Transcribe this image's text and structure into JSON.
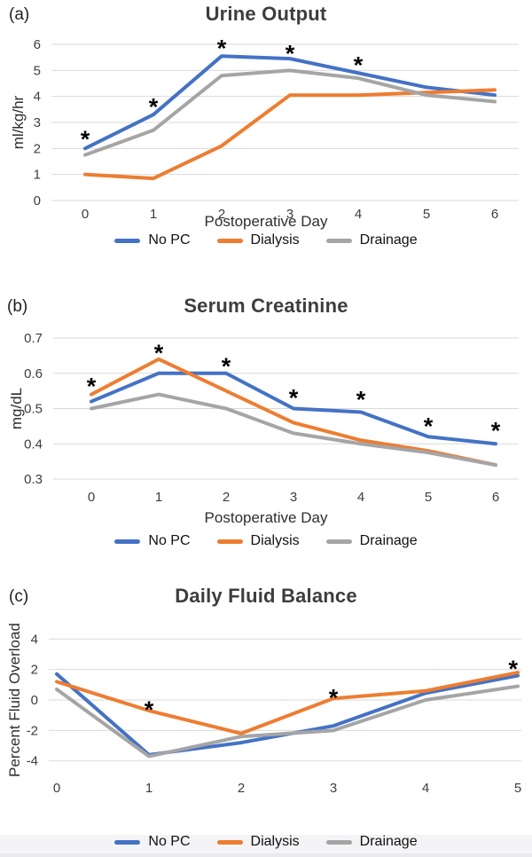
{
  "page": {
    "background": "#ffffff",
    "footer_strip_color": "#f4f4f6",
    "footer_edge_color": "#eaeaee"
  },
  "chart_data": [
    {
      "tag": "(a)",
      "type": "line",
      "title": "Urine Output",
      "ylabel": "ml/kg/hr",
      "xlabel": "Postoperative Day",
      "x": [
        0,
        1,
        2,
        3,
        4,
        5,
        6
      ],
      "ylim": [
        0,
        6
      ],
      "yticks": [
        0,
        1,
        2,
        3,
        4,
        5,
        6
      ],
      "grid": true,
      "legend_position": "bottom",
      "series": [
        {
          "name": "No PC",
          "color": "#4472C4",
          "values": [
            2.0,
            3.3,
            5.55,
            5.45,
            4.9,
            4.35,
            4.05
          ]
        },
        {
          "name": "Dialysis",
          "color": "#ED7D31",
          "values": [
            1.0,
            0.85,
            2.1,
            4.05,
            4.05,
            4.15,
            4.25
          ]
        },
        {
          "name": "Drainage",
          "color": "#A5A5A5",
          "values": [
            1.75,
            2.7,
            4.8,
            5.0,
            4.7,
            4.05,
            3.8
          ]
        }
      ],
      "significance_marks": [
        {
          "x": 0,
          "y": 2.55
        },
        {
          "x": 1,
          "y": 3.8
        },
        {
          "x": 2,
          "y": 6.05
        },
        {
          "x": 3,
          "y": 5.85
        },
        {
          "x": 4,
          "y": 5.4
        }
      ]
    },
    {
      "tag": "(b)",
      "type": "line",
      "title": "Serum Creatinine",
      "ylabel": "mg/dL",
      "xlabel": "Postoperative Day",
      "x": [
        0,
        1,
        2,
        3,
        4,
        5,
        6
      ],
      "ylim": [
        0.3,
        0.7
      ],
      "yticks": [
        0.7,
        0.6,
        0.5,
        0.4,
        0.3
      ],
      "grid": true,
      "legend_position": "bottom",
      "series": [
        {
          "name": "No PC",
          "color": "#4472C4",
          "values": [
            0.52,
            0.6,
            0.6,
            0.5,
            0.49,
            0.42,
            0.4
          ]
        },
        {
          "name": "Dialysis",
          "color": "#ED7D31",
          "values": [
            0.54,
            0.64,
            0.55,
            0.46,
            0.41,
            0.38,
            0.34
          ]
        },
        {
          "name": "Drainage",
          "color": "#A5A5A5",
          "values": [
            0.5,
            0.54,
            0.5,
            0.43,
            0.4,
            0.375,
            0.34
          ]
        }
      ],
      "significance_marks": [
        {
          "x": 0,
          "y": 0.578
        },
        {
          "x": 1,
          "y": 0.672
        },
        {
          "x": 2,
          "y": 0.635
        },
        {
          "x": 3,
          "y": 0.545
        },
        {
          "x": 4,
          "y": 0.54
        },
        {
          "x": 5,
          "y": 0.465
        },
        {
          "x": 6,
          "y": 0.452
        }
      ]
    },
    {
      "tag": "(c)",
      "type": "line",
      "title": "Daily Fluid Balance",
      "ylabel": "Percent Fluid Overload",
      "xlabel": "",
      "x": [
        0,
        1,
        2,
        3,
        4,
        5
      ],
      "ylim": [
        -4.6,
        4.6
      ],
      "yticks": [
        4,
        2,
        0,
        -2,
        -4
      ],
      "grid": true,
      "legend_position": "bottom",
      "series": [
        {
          "name": "No PC",
          "color": "#4472C4",
          "values": [
            1.7,
            -3.6,
            -2.8,
            -1.7,
            0.45,
            1.6
          ]
        },
        {
          "name": "Dialysis",
          "color": "#ED7D31",
          "values": [
            1.2,
            -0.7,
            -2.2,
            0.1,
            0.6,
            1.8
          ]
        },
        {
          "name": "Drainage",
          "color": "#A5A5A5",
          "values": [
            0.7,
            -3.7,
            -2.4,
            -2.0,
            0.0,
            0.9
          ]
        }
      ],
      "significance_marks": [
        {
          "x": 1,
          "y": -0.3
        },
        {
          "x": 3,
          "y": 0.5
        },
        {
          "x": 4.95,
          "y": 2.4
        }
      ]
    }
  ]
}
